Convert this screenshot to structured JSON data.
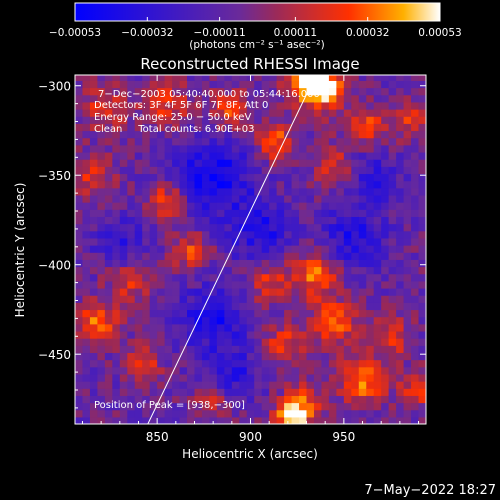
{
  "chart_data": {
    "type": "heatmap",
    "title": "Reconstructed RHESSI Image",
    "xlabel": "Heliocentric X (arcsec)",
    "ylabel": "Heliocentric Y (arcsec)",
    "xlim": [
      806,
      994
    ],
    "ylim": [
      -489,
      -294
    ],
    "x_ticks": [
      850,
      900,
      950
    ],
    "x_tick_labels": [
      "850",
      "900",
      "950"
    ],
    "y_ticks": [
      -300,
      -350,
      -400,
      -450
    ],
    "y_tick_labels": [
      "−300",
      "−350",
      "−400",
      "−450"
    ],
    "colorbar": {
      "range": [
        -0.00053,
        0.00053
      ],
      "ticks": [
        -0.00053,
        -0.00032,
        -0.00011,
        0.00011,
        0.00032,
        0.00053
      ],
      "tick_labels": [
        "−0.00053",
        "−0.00032",
        "−0.00011",
        "0.00011",
        "0.00032",
        "0.00053"
      ],
      "units_label": "(photons cm⁻² s⁻¹ asec⁻²)"
    },
    "annotations": [
      "7−Dec−2003 05:40:40.000 to 05:44:16.000",
      "Detectors: 3F 4F 5F 6F 7F 8F, Att 0",
      "Energy Range: 25.0 − 50.0 keV",
      "Clean     Total counts: 6.90E+03"
    ],
    "peak_label": "Position of Peak = [938,−300]",
    "limb_line": [
      [
        845,
        -489
      ],
      [
        935,
        -294
      ]
    ],
    "hot_regions": [
      {
        "x": 938,
        "y": -300,
        "amp": 1.0,
        "r": 10
      },
      {
        "x": 930,
        "y": -296,
        "amp": 0.8,
        "r": 8
      },
      {
        "x": 913,
        "y": -331,
        "amp": 0.75,
        "r": 7
      },
      {
        "x": 822,
        "y": -312,
        "amp": 0.55,
        "r": 9
      },
      {
        "x": 855,
        "y": -310,
        "amp": 0.55,
        "r": 9
      },
      {
        "x": 888,
        "y": -313,
        "amp": 0.6,
        "r": 8
      },
      {
        "x": 962,
        "y": -322,
        "amp": 0.6,
        "r": 7
      },
      {
        "x": 986,
        "y": -318,
        "amp": 0.5,
        "r": 8
      },
      {
        "x": 945,
        "y": -345,
        "amp": 0.5,
        "r": 8
      },
      {
        "x": 815,
        "y": -350,
        "amp": 0.55,
        "r": 8
      },
      {
        "x": 855,
        "y": -365,
        "amp": 0.75,
        "r": 7
      },
      {
        "x": 868,
        "y": -392,
        "amp": 0.6,
        "r": 7
      },
      {
        "x": 835,
        "y": -410,
        "amp": 0.5,
        "r": 8
      },
      {
        "x": 818,
        "y": -432,
        "amp": 0.75,
        "r": 8
      },
      {
        "x": 842,
        "y": -455,
        "amp": 0.55,
        "r": 7
      },
      {
        "x": 910,
        "y": -410,
        "amp": 0.55,
        "r": 8
      },
      {
        "x": 935,
        "y": -405,
        "amp": 0.75,
        "r": 9
      },
      {
        "x": 945,
        "y": -432,
        "amp": 0.7,
        "r": 9
      },
      {
        "x": 918,
        "y": -445,
        "amp": 0.6,
        "r": 8
      },
      {
        "x": 960,
        "y": -465,
        "amp": 0.75,
        "r": 9
      },
      {
        "x": 928,
        "y": -478,
        "amp": 0.65,
        "r": 8
      },
      {
        "x": 975,
        "y": -440,
        "amp": 0.55,
        "r": 8
      },
      {
        "x": 990,
        "y": -470,
        "amp": 0.6,
        "r": 7
      },
      {
        "x": 922,
        "y": -486,
        "amp": 0.95,
        "r": 6
      },
      {
        "x": 880,
        "y": -478,
        "amp": 0.45,
        "r": 7
      }
    ],
    "cold_regions": [
      {
        "x": 880,
        "y": -350,
        "amp": -0.75,
        "r": 14
      },
      {
        "x": 905,
        "y": -380,
        "amp": -0.6,
        "r": 12
      },
      {
        "x": 880,
        "y": -430,
        "amp": -0.65,
        "r": 12
      },
      {
        "x": 955,
        "y": -385,
        "amp": -0.55,
        "r": 12
      },
      {
        "x": 965,
        "y": -352,
        "amp": -0.45,
        "r": 10
      },
      {
        "x": 830,
        "y": -385,
        "amp": -0.4,
        "r": 10
      },
      {
        "x": 890,
        "y": -460,
        "amp": -0.5,
        "r": 10
      }
    ]
  },
  "timestamp": "7−May−2022 18:27"
}
